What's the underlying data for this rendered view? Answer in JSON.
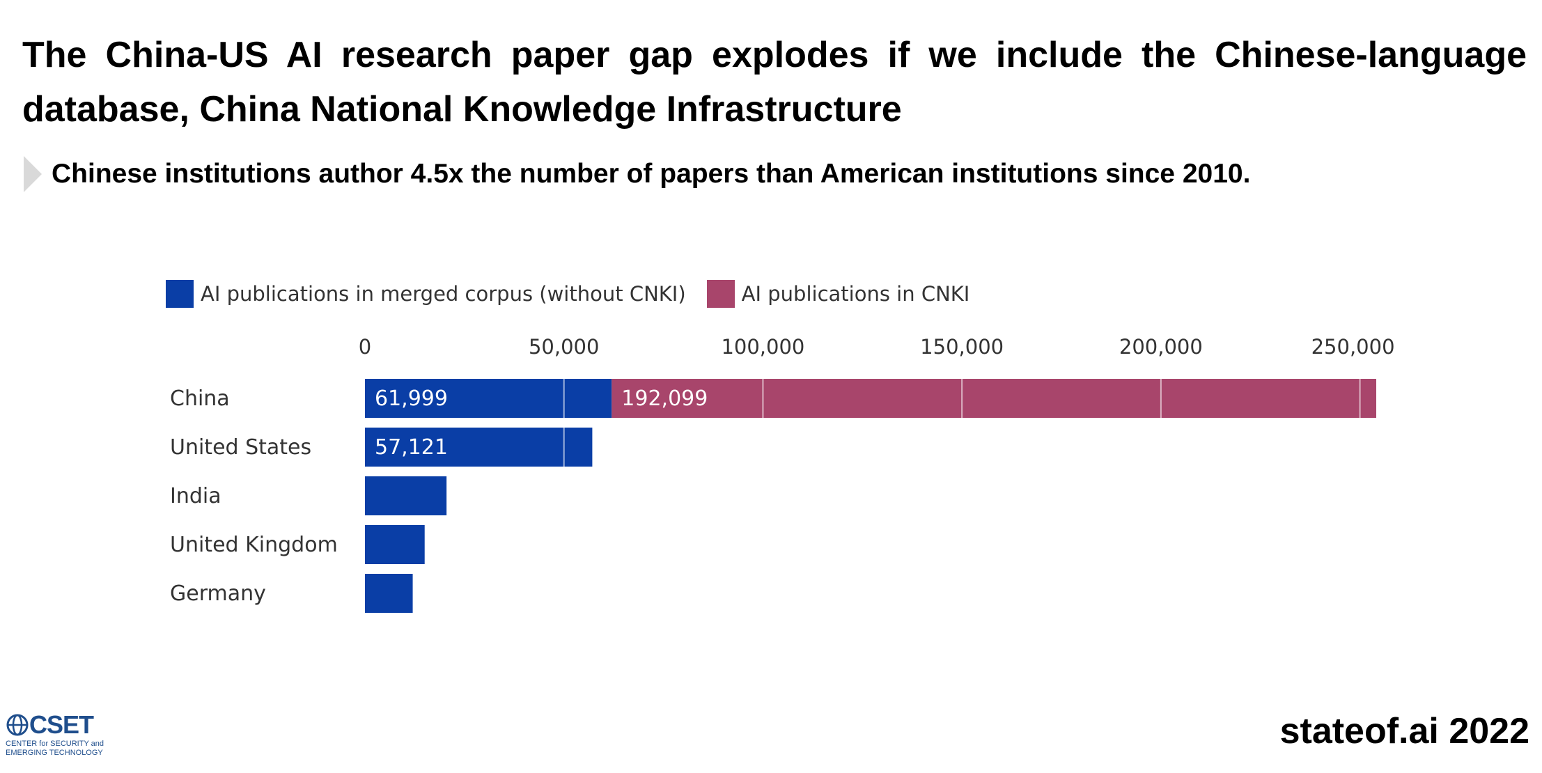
{
  "slide": {
    "title": "The China-US AI research paper gap explodes if we include the Chinese-language database, China National Knowledge Infrastructure",
    "subtitle": "Chinese institutions author 4.5x the number of papers than American institutions since 2010.",
    "footer": "stateof.ai 2022",
    "logo": {
      "name": "CSET",
      "line1": "CENTER for SECURITY and",
      "line2": "EMERGING TECHNOLOGY",
      "icon": "globe-icon"
    }
  },
  "chart_data": {
    "type": "bar",
    "orientation": "horizontal",
    "stacked": true,
    "categories": [
      "China",
      "United States",
      "India",
      "United Kingdom",
      "Germany"
    ],
    "series": [
      {
        "name": "AI publications in merged corpus (without CNKI)",
        "color": "#0a3ea6",
        "values": [
          61999,
          57121,
          20500,
          15000,
          12000
        ]
      },
      {
        "name": "AI publications in CNKI",
        "color": "#a8456b",
        "values": [
          192099,
          0,
          0,
          0,
          0
        ]
      }
    ],
    "data_labels": [
      {
        "category": "China",
        "series": 0,
        "text": "61,999"
      },
      {
        "category": "China",
        "series": 1,
        "text": "192,099"
      },
      {
        "category": "United States",
        "series": 0,
        "text": "57,121"
      }
    ],
    "xticks": [
      0,
      50000,
      100000,
      150000,
      200000,
      250000
    ],
    "xtick_labels": [
      "0",
      "50,000",
      "100,000",
      "150,000",
      "200,000",
      "250,000"
    ],
    "xlim": [
      0,
      254098
    ],
    "axis_position": "top",
    "grid": "vertical lines",
    "legend_position": "top-left"
  }
}
